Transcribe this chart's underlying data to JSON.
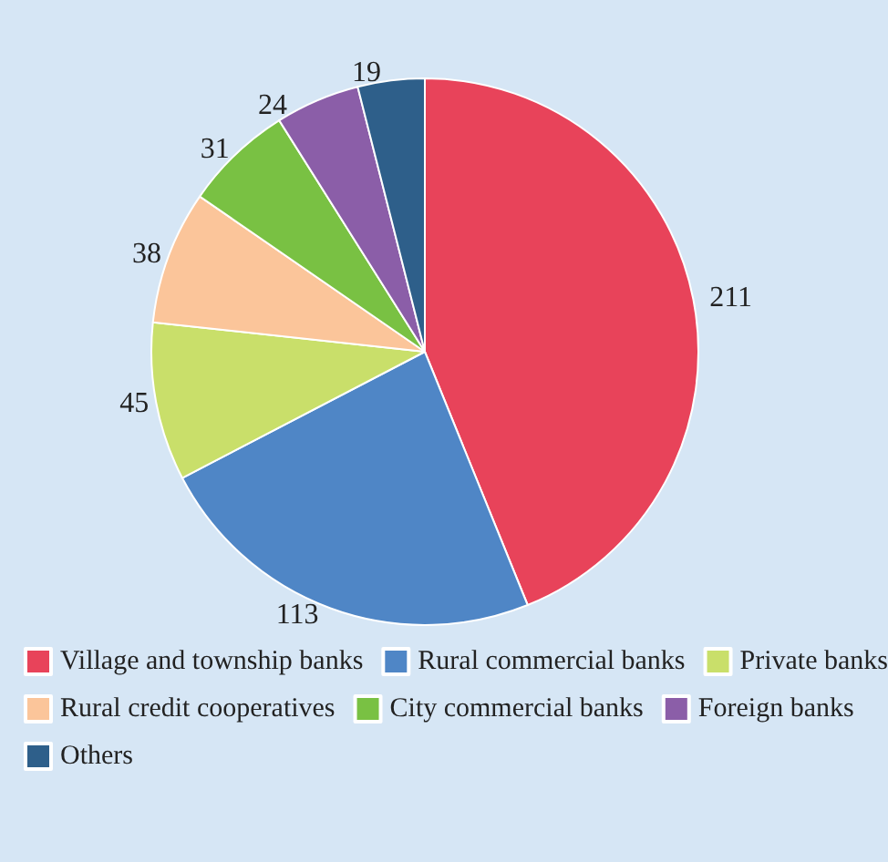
{
  "chart_data": {
    "type": "pie",
    "categories": [
      "Village and township banks",
      "Rural commercial banks",
      "Private banks",
      "Rural credit cooperatives",
      "City commercial banks",
      "Foreign banks",
      "Others"
    ],
    "values": [
      211,
      113,
      45,
      38,
      31,
      24,
      19
    ],
    "colors": [
      "#e8435a",
      "#4f86c6",
      "#c9df6a",
      "#fbc59a",
      "#79c143",
      "#8b5ea8",
      "#2e5f8a"
    ],
    "data_labels": true,
    "legend": "bottom"
  }
}
